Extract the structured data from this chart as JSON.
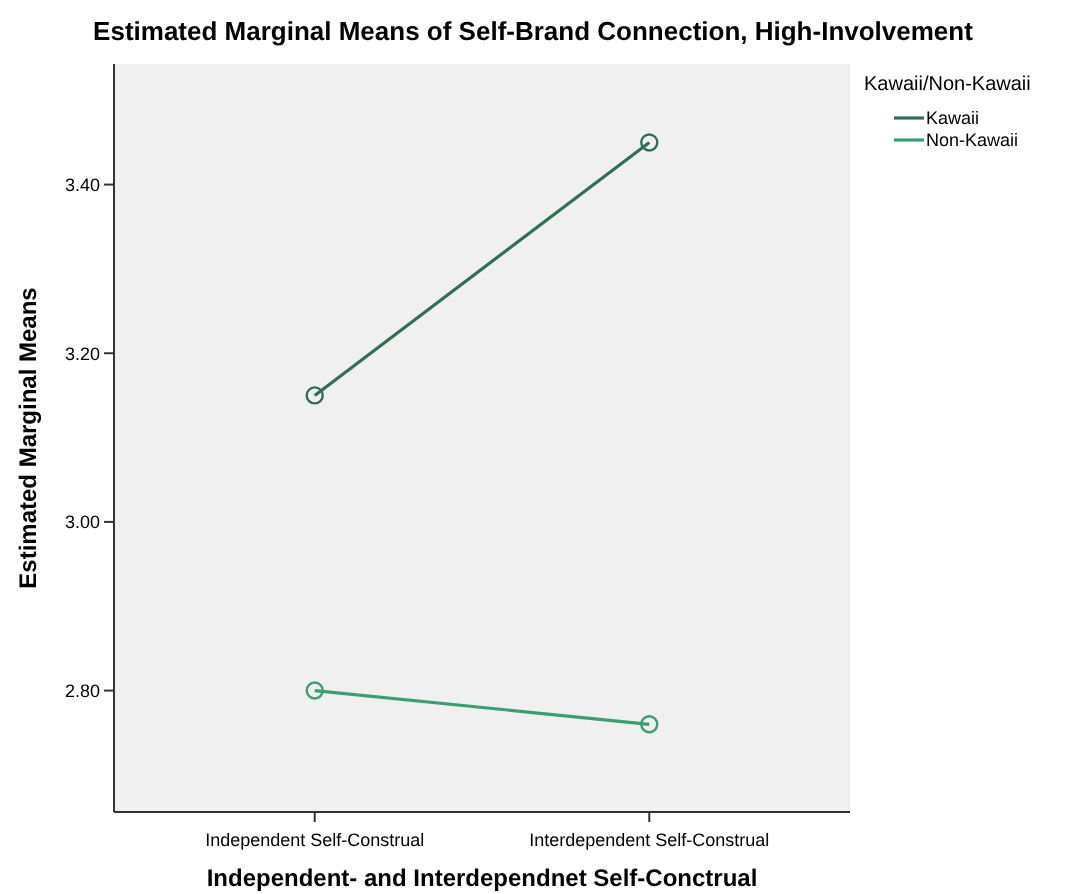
{
  "chart_data": {
    "type": "line",
    "title": "Estimated Marginal Means of Self-Brand Connection, High-Involvement",
    "xlabel": "Independent- and Interdependnet Self-Conctrual",
    "ylabel": "Estimated Marginal Means",
    "legend_title": "Kawaii/Non-Kawaii",
    "categories": [
      "Independent Self-Construal",
      "Interdependent Self-Construal"
    ],
    "series": [
      {
        "name": "Kawaii",
        "color": "#2f6f55",
        "values": [
          3.15,
          3.45
        ]
      },
      {
        "name": "Non-Kawaii",
        "color": "#3a9e72",
        "values": [
          2.8,
          2.76
        ]
      }
    ],
    "ylim": [
      2.656,
      3.543
    ],
    "yticks": [
      {
        "value": 2.8,
        "label": "2.80"
      },
      {
        "value": 3.0,
        "label": "3.00"
      },
      {
        "value": 3.2,
        "label": "3.20"
      },
      {
        "value": 3.4,
        "label": "3.40"
      }
    ],
    "grid": false,
    "legend": "top right",
    "marker": "circle",
    "line_style": "solid"
  }
}
